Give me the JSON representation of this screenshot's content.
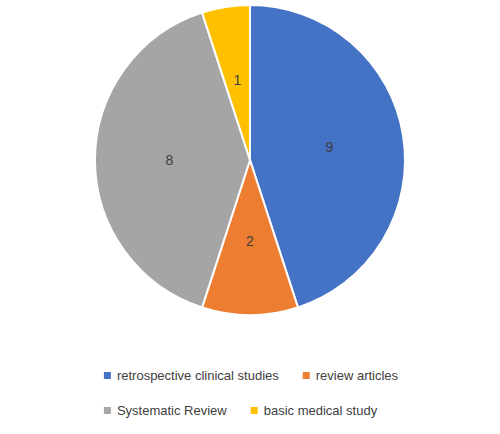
{
  "chart_data": {
    "type": "pie",
    "categories": [
      "retrospective clinical studies",
      "review articles",
      "Systematic Review",
      "basic medical study"
    ],
    "values": [
      9,
      2,
      8,
      1
    ],
    "colors": [
      "#4472c4",
      "#ed7d31",
      "#a5a5a5",
      "#ffc000"
    ],
    "data_labels": true,
    "legend": "bottom"
  }
}
